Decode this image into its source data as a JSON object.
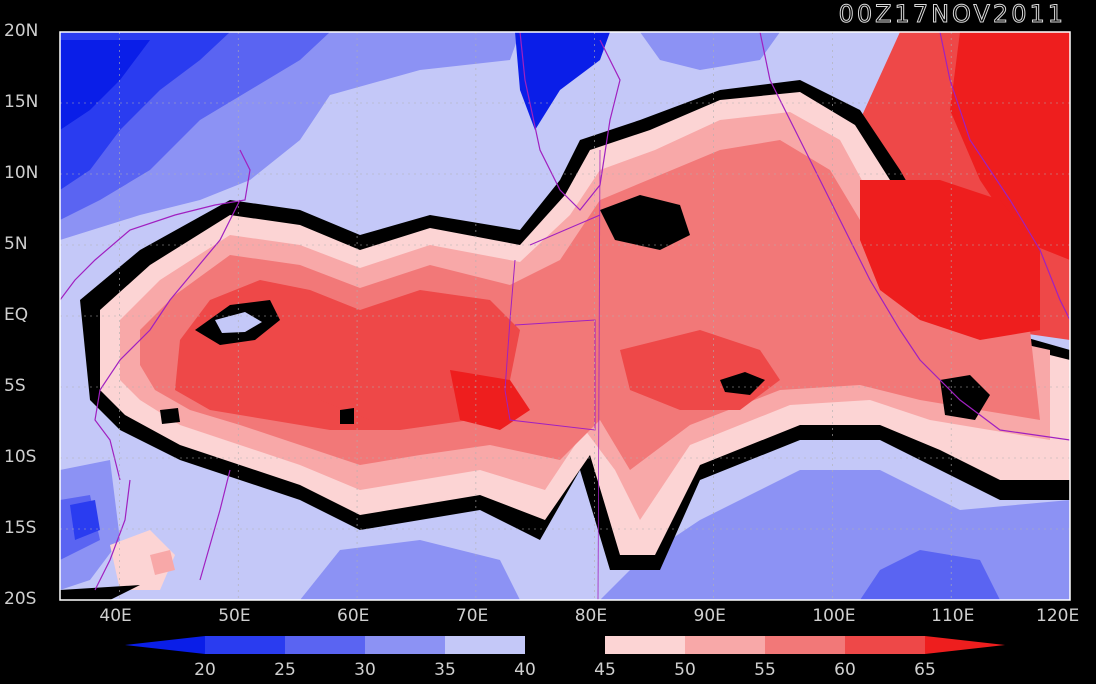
{
  "title": "00Z17NOV2011",
  "lat_labels": [
    "20N",
    "15N",
    "10N",
    "5N",
    "EQ",
    "5S",
    "10S",
    "15S",
    "20S"
  ],
  "lon_labels": [
    "40E",
    "50E",
    "60E",
    "70E",
    "80E",
    "90E",
    "100E",
    "110E",
    "120E"
  ],
  "colorbar": {
    "tick_labels": [
      "20",
      "25",
      "30",
      "35",
      "40",
      "45",
      "50",
      "55",
      "60",
      "65"
    ],
    "colors": [
      "#0a1ee8",
      "#2a3cf0",
      "#5a64f2",
      "#8c92f4",
      "#c4c8f8",
      "#000000",
      "#fcd4d4",
      "#f8a8a8",
      "#f27878",
      "#ee4848",
      "#ee1e1e"
    ]
  },
  "colors": {
    "background": "#000000",
    "frame": "#ffffff",
    "coastline": "#a020c0",
    "grid": "#b0b0b0"
  }
}
